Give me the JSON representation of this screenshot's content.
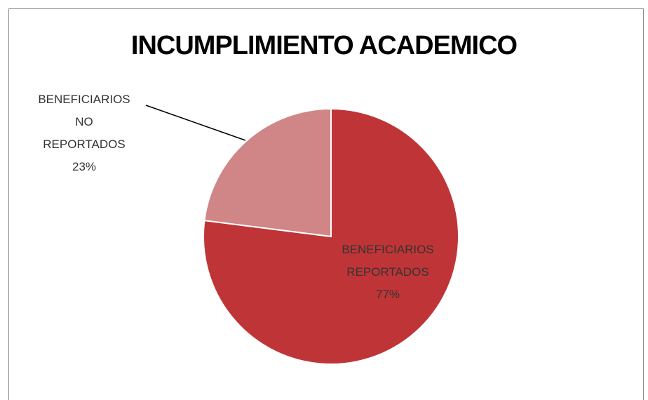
{
  "chart_data": {
    "type": "pie",
    "title": "INCUMPLIMIENTO ACADEMICO",
    "categories": [
      "BENEFICIARIOS REPORTADOS",
      "BENEFICIARIOS NO REPORTADOS"
    ],
    "values": [
      77,
      23
    ],
    "value_labels": [
      "77%",
      "23%"
    ],
    "colors": [
      "#bf3537",
      "#d08586"
    ]
  }
}
